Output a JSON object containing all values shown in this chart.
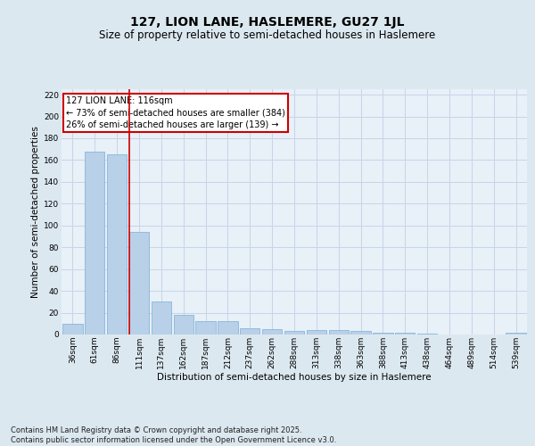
{
  "title": "127, LION LANE, HASLEMERE, GU27 1JL",
  "subtitle": "Size of property relative to semi-detached houses in Haslemere",
  "xlabel": "Distribution of semi-detached houses by size in Haslemere",
  "ylabel": "Number of semi-detached properties",
  "categories": [
    "36sqm",
    "61sqm",
    "86sqm",
    "111sqm",
    "137sqm",
    "162sqm",
    "187sqm",
    "212sqm",
    "237sqm",
    "262sqm",
    "288sqm",
    "313sqm",
    "338sqm",
    "363sqm",
    "388sqm",
    "413sqm",
    "438sqm",
    "464sqm",
    "489sqm",
    "514sqm",
    "539sqm"
  ],
  "values": [
    10,
    168,
    165,
    94,
    30,
    18,
    12,
    12,
    6,
    5,
    3,
    4,
    4,
    3,
    2,
    2,
    1,
    0,
    0,
    0,
    2
  ],
  "bar_color": "#b8d0e8",
  "bar_edge_color": "#7aafd4",
  "vline_index": 3,
  "annotation_text": "127 LION LANE: 116sqm\n← 73% of semi-detached houses are smaller (384)\n26% of semi-detached houses are larger (139) →",
  "annotation_box_color": "#ffffff",
  "annotation_box_edge_color": "#cc0000",
  "vline_color": "#cc0000",
  "grid_color": "#c8d4e8",
  "bg_color": "#dce8f0",
  "plot_bg_color": "#e8f0f8",
  "ylim": [
    0,
    225
  ],
  "yticks": [
    0,
    20,
    40,
    60,
    80,
    100,
    120,
    140,
    160,
    180,
    200,
    220
  ],
  "footer": "Contains HM Land Registry data © Crown copyright and database right 2025.\nContains public sector information licensed under the Open Government Licence v3.0.",
  "title_fontsize": 10,
  "subtitle_fontsize": 8.5,
  "axis_label_fontsize": 7.5,
  "tick_fontsize": 6.5,
  "annotation_fontsize": 7,
  "footer_fontsize": 6
}
